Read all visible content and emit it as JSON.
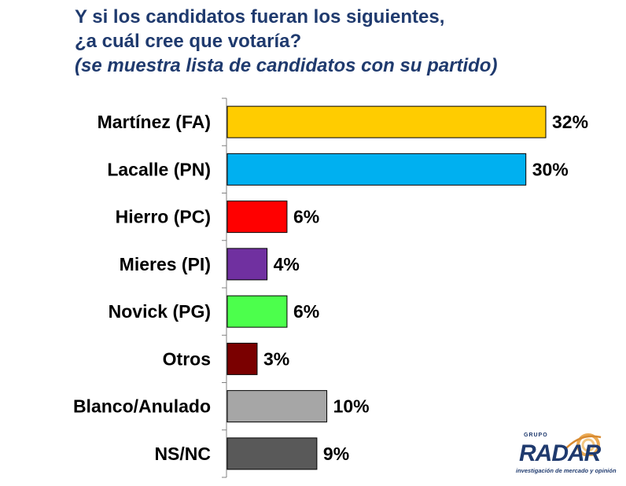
{
  "title": {
    "line1": "Y si los candidatos fueran los siguientes,",
    "line2": "¿a cuál cree que votaría?",
    "line3": "(se muestra lista de candidatos con su partido)"
  },
  "chart_data": {
    "type": "bar",
    "orientation": "horizontal",
    "categories": [
      "Martínez (FA)",
      "Lacalle (PN)",
      "Hierro (PC)",
      "Mieres (PI)",
      "Novick (PG)",
      "Otros",
      "Blanco/Anulado",
      "NS/NC"
    ],
    "values": [
      32,
      30,
      6,
      4,
      6,
      3,
      10,
      9
    ],
    "value_labels": [
      "32%",
      "30%",
      "6%",
      "4%",
      "6%",
      "3%",
      "10%",
      "9%"
    ],
    "colors": [
      "#ffcc00",
      "#00b0f0",
      "#ff0000",
      "#7030a0",
      "#4cff4c",
      "#7a0000",
      "#a6a6a6",
      "#595959"
    ],
    "xlim": [
      0,
      32
    ],
    "grid": false,
    "legend": "none"
  },
  "logo": {
    "grupo": "GRUPO",
    "brand": "RADAR",
    "tagline": "investigación de mercado y opinión"
  }
}
